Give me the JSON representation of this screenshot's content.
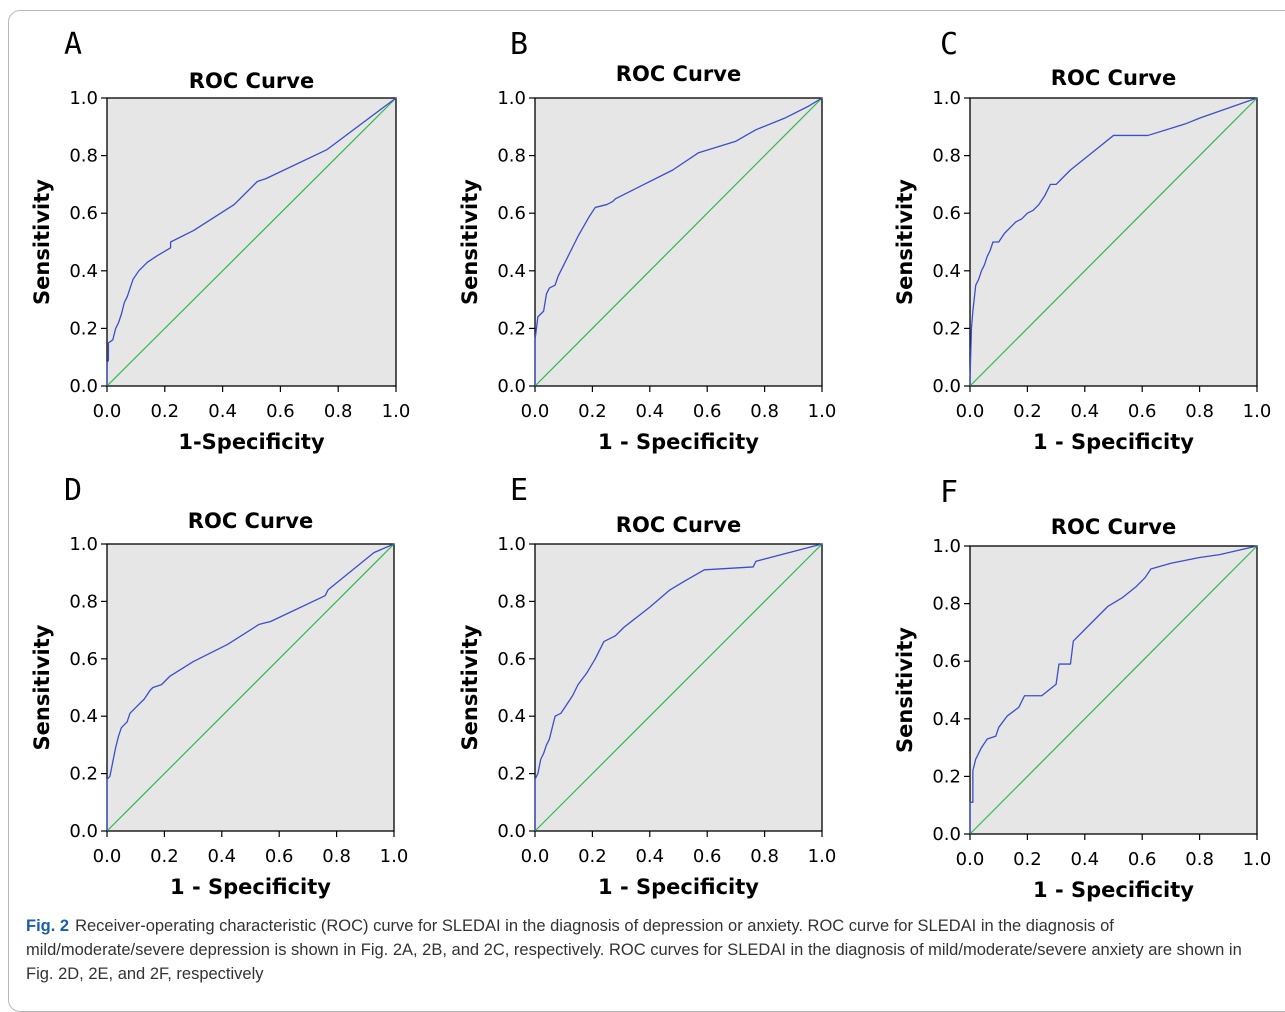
{
  "colors": {
    "plot_background": "#e6e6e6",
    "roc_line": "#3b4fc8",
    "reference_line": "#2fb84a",
    "caption_label": "#1a5fa8"
  },
  "caption": {
    "label": "Fig. 2",
    "text": "Receiver-operating characteristic (ROC) curve for SLEDAI in the diagnosis of depression or anxiety. ROC curve for SLEDAI in the diagnosis of mild/moderate/severe depression is shown in Fig. 2A, 2B, and 2C, respectively. ROC curves for SLEDAI in the diagnosis of mild/moderate/severe anxiety are shown in Fig. 2D, 2E, and 2F, respectively"
  },
  "chart_data": [
    {
      "panel": "A",
      "type": "line",
      "title": "ROC Curve",
      "xlabel": "1-Specificity",
      "ylabel": "Sensitivity",
      "xlim": [
        0,
        1
      ],
      "ylim": [
        0,
        1
      ],
      "xticks": [
        "0.0",
        "0.2",
        "0.4",
        "0.6",
        "0.8",
        "1.0"
      ],
      "yticks": [
        "0.0",
        "0.2",
        "0.4",
        "0.6",
        "0.8",
        "1.0"
      ],
      "grid": false,
      "legend": "none",
      "series": [
        {
          "x": [
            0,
            0,
            0.005,
            0.005,
            0.02,
            0.03,
            0.04,
            0.05,
            0.06,
            0.07,
            0.09,
            0.11,
            0.14,
            0.17,
            0.22,
            0.22,
            0.3,
            0.44,
            0.52,
            0.55,
            0.76,
            1.0
          ],
          "y": [
            0,
            0.08,
            0.09,
            0.15,
            0.16,
            0.2,
            0.22,
            0.25,
            0.29,
            0.31,
            0.37,
            0.4,
            0.43,
            0.45,
            0.48,
            0.5,
            0.54,
            0.63,
            0.71,
            0.72,
            0.82,
            1.0
          ]
        },
        {
          "x": [
            0,
            1
          ],
          "y": [
            0,
            1
          ]
        }
      ]
    },
    {
      "panel": "B",
      "type": "line",
      "title": "ROC Curve",
      "xlabel": "1 - Specificity",
      "ylabel": "Sensitivity",
      "xlim": [
        0,
        1
      ],
      "ylim": [
        0,
        1
      ],
      "xticks": [
        "0.0",
        "0.2",
        "0.4",
        "0.6",
        "0.8",
        "1.0"
      ],
      "yticks": [
        "0.0",
        "0.2",
        "0.4",
        "0.6",
        "0.8",
        "1.0"
      ],
      "grid": false,
      "legend": "none",
      "series": [
        {
          "x": [
            0,
            0,
            0.005,
            0.01,
            0.02,
            0.03,
            0.04,
            0.05,
            0.07,
            0.08,
            0.1,
            0.12,
            0.15,
            0.19,
            0.21,
            0.25,
            0.27,
            0.28,
            0.34,
            0.46,
            0.48,
            0.57,
            0.7,
            0.77,
            0.87,
            0.95,
            1.0
          ],
          "y": [
            0,
            0.16,
            0.2,
            0.24,
            0.25,
            0.26,
            0.32,
            0.34,
            0.35,
            0.38,
            0.42,
            0.46,
            0.52,
            0.59,
            0.62,
            0.63,
            0.64,
            0.65,
            0.68,
            0.74,
            0.75,
            0.81,
            0.85,
            0.89,
            0.93,
            0.97,
            1.0
          ]
        },
        {
          "x": [
            0,
            1
          ],
          "y": [
            0,
            1
          ]
        }
      ]
    },
    {
      "panel": "C",
      "type": "line",
      "title": "ROC Curve",
      "xlabel": "1 - Specificity",
      "ylabel": "Sensitivity",
      "xlim": [
        0,
        1
      ],
      "ylim": [
        0,
        1
      ],
      "xticks": [
        "0.0",
        "0.2",
        "0.4",
        "0.6",
        "0.8",
        "1.0"
      ],
      "yticks": [
        "0.0",
        "0.2",
        "0.4",
        "0.6",
        "0.8",
        "1.0"
      ],
      "grid": false,
      "legend": "none",
      "series": [
        {
          "x": [
            0,
            0,
            0.005,
            0.01,
            0.02,
            0.03,
            0.04,
            0.05,
            0.06,
            0.07,
            0.08,
            0.09,
            0.1,
            0.12,
            0.14,
            0.16,
            0.18,
            0.2,
            0.22,
            0.24,
            0.26,
            0.28,
            0.3,
            0.32,
            0.35,
            0.4,
            0.45,
            0.5,
            0.62,
            0.75,
            0.8,
            1.0
          ],
          "y": [
            0,
            0.02,
            0.2,
            0.26,
            0.35,
            0.37,
            0.4,
            0.42,
            0.45,
            0.47,
            0.5,
            0.5,
            0.5,
            0.53,
            0.55,
            0.57,
            0.58,
            0.6,
            0.61,
            0.63,
            0.66,
            0.7,
            0.7,
            0.72,
            0.75,
            0.79,
            0.83,
            0.87,
            0.87,
            0.91,
            0.93,
            1.0
          ]
        },
        {
          "x": [
            0,
            1
          ],
          "y": [
            0,
            1
          ]
        }
      ]
    },
    {
      "panel": "D",
      "type": "line",
      "title": "ROC Curve",
      "xlabel": "1 - Specificity",
      "ylabel": "Sensitivity",
      "xlim": [
        0,
        1
      ],
      "ylim": [
        0,
        1
      ],
      "xticks": [
        "0.0",
        "0.2",
        "0.4",
        "0.6",
        "0.8",
        "1.0"
      ],
      "yticks": [
        "0.0",
        "0.2",
        "0.4",
        "0.6",
        "0.8",
        "1.0"
      ],
      "grid": false,
      "legend": "none",
      "series": [
        {
          "x": [
            0,
            0,
            0.01,
            0.02,
            0.03,
            0.04,
            0.05,
            0.07,
            0.08,
            0.1,
            0.13,
            0.15,
            0.16,
            0.19,
            0.21,
            0.22,
            0.3,
            0.42,
            0.53,
            0.57,
            0.76,
            0.77,
            0.93,
            1.0
          ],
          "y": [
            0,
            0.18,
            0.19,
            0.24,
            0.29,
            0.33,
            0.36,
            0.38,
            0.41,
            0.43,
            0.46,
            0.49,
            0.5,
            0.51,
            0.53,
            0.54,
            0.59,
            0.65,
            0.72,
            0.73,
            0.82,
            0.84,
            0.97,
            1.0
          ]
        },
        {
          "x": [
            0,
            1
          ],
          "y": [
            0,
            1
          ]
        }
      ]
    },
    {
      "panel": "E",
      "type": "line",
      "title": "ROC Curve",
      "xlabel": "1 - Specificity",
      "ylabel": "Sensitivity",
      "xlim": [
        0,
        1
      ],
      "ylim": [
        0,
        1
      ],
      "xticks": [
        "0.0",
        "0.2",
        "0.4",
        "0.6",
        "0.8",
        "1.0"
      ],
      "yticks": [
        "0.0",
        "0.2",
        "0.4",
        "0.6",
        "0.8",
        "1.0"
      ],
      "grid": false,
      "legend": "none",
      "series": [
        {
          "x": [
            0,
            0,
            0.01,
            0.02,
            0.03,
            0.04,
            0.05,
            0.06,
            0.07,
            0.09,
            0.11,
            0.13,
            0.15,
            0.18,
            0.21,
            0.24,
            0.28,
            0.31,
            0.4,
            0.47,
            0.52,
            0.59,
            0.76,
            0.77,
            1.0
          ],
          "y": [
            0,
            0.18,
            0.2,
            0.25,
            0.27,
            0.3,
            0.32,
            0.36,
            0.4,
            0.41,
            0.44,
            0.47,
            0.51,
            0.55,
            0.6,
            0.66,
            0.68,
            0.71,
            0.78,
            0.84,
            0.87,
            0.91,
            0.92,
            0.94,
            1.0
          ]
        },
        {
          "x": [
            0,
            1
          ],
          "y": [
            0,
            1
          ]
        }
      ]
    },
    {
      "panel": "F",
      "type": "line",
      "title": "ROC Curve",
      "xlabel": "1 - Specificity",
      "ylabel": "Sensitivity",
      "xlim": [
        0,
        1
      ],
      "ylim": [
        0,
        1
      ],
      "xticks": [
        "0.0",
        "0.2",
        "0.4",
        "0.6",
        "0.8",
        "1.0"
      ],
      "yticks": [
        "0.0",
        "0.2",
        "0.4",
        "0.6",
        "0.8",
        "1.0"
      ],
      "grid": false,
      "legend": "none",
      "series": [
        {
          "x": [
            0,
            0,
            0.01,
            0.01,
            0.02,
            0.03,
            0.04,
            0.06,
            0.09,
            0.1,
            0.13,
            0.17,
            0.19,
            0.21,
            0.25,
            0.3,
            0.31,
            0.35,
            0.36,
            0.43,
            0.48,
            0.53,
            0.58,
            0.61,
            0.63,
            0.7,
            0.8,
            0.87,
            1.0
          ],
          "y": [
            0,
            0.11,
            0.11,
            0.22,
            0.26,
            0.28,
            0.3,
            0.33,
            0.34,
            0.37,
            0.41,
            0.44,
            0.48,
            0.48,
            0.48,
            0.52,
            0.59,
            0.59,
            0.67,
            0.74,
            0.79,
            0.82,
            0.86,
            0.89,
            0.92,
            0.94,
            0.96,
            0.97,
            1.0
          ]
        },
        {
          "x": [
            0,
            1
          ],
          "y": [
            0,
            1
          ]
        }
      ]
    }
  ]
}
